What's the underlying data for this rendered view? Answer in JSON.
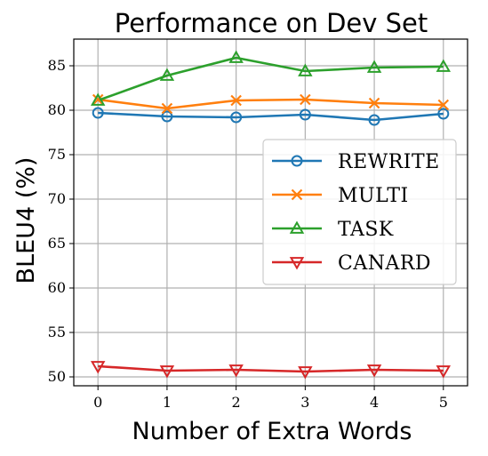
{
  "chart_data": {
    "type": "line",
    "title": "Performance on Dev Set",
    "xlabel": "Number of Extra Words",
    "ylabel": "BLEU4 (%)",
    "x": [
      0,
      1,
      2,
      3,
      4,
      5
    ],
    "xlim": [
      -0.35,
      5.35
    ],
    "ylim": [
      49,
      88
    ],
    "xticks": [
      "0",
      "1",
      "2",
      "3",
      "4",
      "5"
    ],
    "yticks": [
      "50",
      "55",
      "60",
      "65",
      "70",
      "75",
      "80",
      "85"
    ],
    "grid": true,
    "legend_position": "center-right",
    "series": [
      {
        "name": "Rewrite",
        "display": "REWRITE",
        "color": "#1f77b4",
        "marker": "circle",
        "values": [
          79.7,
          79.3,
          79.2,
          79.5,
          78.9,
          79.6
        ]
      },
      {
        "name": "Multi",
        "display": "MULTI",
        "color": "#ff7f0e",
        "marker": "x",
        "values": [
          81.2,
          80.2,
          81.1,
          81.2,
          80.8,
          80.6
        ]
      },
      {
        "name": "Task",
        "display": "TASK",
        "color": "#2ca02c",
        "marker": "triangle-up",
        "values": [
          81.1,
          83.9,
          85.9,
          84.4,
          84.8,
          84.9
        ]
      },
      {
        "name": "Canard",
        "display": "CANARD",
        "color": "#d62728",
        "marker": "triangle-down",
        "values": [
          51.2,
          50.7,
          50.8,
          50.6,
          50.8,
          50.7
        ]
      }
    ]
  }
}
